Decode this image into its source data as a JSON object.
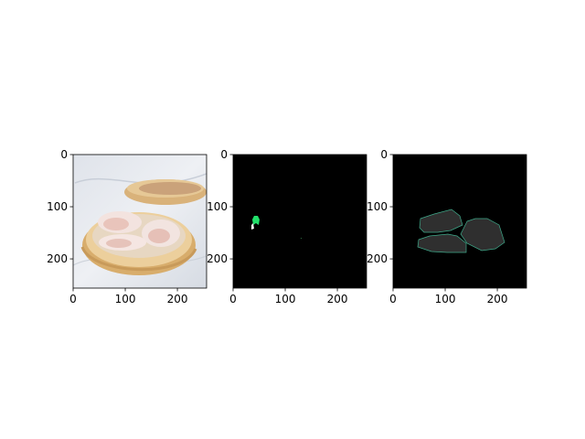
{
  "chart_data": [
    {
      "type": "image",
      "content": "photo-dumplings-bamboo-steamer",
      "xlim": [
        0,
        256
      ],
      "ylim": [
        256,
        0
      ],
      "xticks": [
        0,
        100,
        200
      ],
      "yticks": [
        0,
        100,
        200
      ],
      "xtick_labels": [
        "0",
        "100",
        "200"
      ],
      "ytick_labels": [
        "0",
        "100",
        "200"
      ]
    },
    {
      "type": "image",
      "content": "mask-small-green-region",
      "background": "#000000",
      "accent": "#22e06a",
      "xlim": [
        0,
        256
      ],
      "ylim": [
        256,
        0
      ],
      "xticks": [
        0,
        100,
        200
      ],
      "yticks": [
        0,
        100,
        200
      ],
      "xtick_labels": [
        "0",
        "100",
        "200"
      ],
      "ytick_labels": [
        "0",
        "100",
        "200"
      ]
    },
    {
      "type": "image",
      "content": "mask-gray-dumpling-regions",
      "background": "#000000",
      "fill": "#2f2f2f",
      "outline": "#3fa98a",
      "xlim": [
        0,
        256
      ],
      "ylim": [
        256,
        0
      ],
      "xticks": [
        0,
        100,
        200
      ],
      "yticks": [
        0,
        100,
        200
      ],
      "xtick_labels": [
        "0",
        "100",
        "200"
      ],
      "ytick_labels": [
        "0",
        "100",
        "200"
      ]
    }
  ]
}
